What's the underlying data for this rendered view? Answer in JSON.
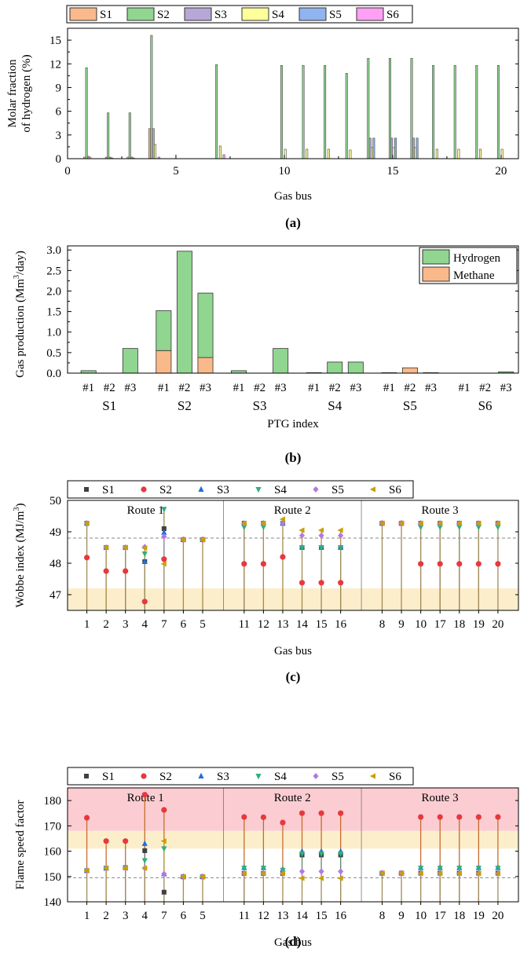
{
  "panels": [
    {
      "id": "a",
      "caption": "(a)"
    },
    {
      "id": "b",
      "caption": "(b)"
    },
    {
      "id": "c",
      "caption": "(c)"
    },
    {
      "id": "d",
      "caption": "(d)"
    }
  ],
  "colors": {
    "S1": "#f9b98a",
    "S2": "#90d590",
    "S3": "#b6a7d6",
    "S4": "#ffff99",
    "S5": "#8fb4f0",
    "S6": "#ffa0f5",
    "hydrogen": "#90d590",
    "methane": "#f9b98a",
    "markers": {
      "S1": "#404040",
      "S2": "#e8383d",
      "S3": "#1f6fd8",
      "S4": "#2fb07a",
      "S5": "#b577e0",
      "S6": "#c9a000"
    },
    "stem": "#b58a2a",
    "band_light": "#fdeecb",
    "band_red": "#fbcdd2"
  },
  "chart_data": [
    {
      "type": "bar",
      "panel": "a",
      "xlabel": "Gas bus",
      "ylabel": "Molar fraction of hydrogen (%)",
      "xlim": [
        0,
        20.8
      ],
      "ylim": [
        0,
        16.5
      ],
      "xticks": [
        0,
        5,
        10,
        15,
        20
      ],
      "yticks": [
        0,
        3,
        6,
        9,
        12,
        15
      ],
      "legend": [
        "S1",
        "S2",
        "S3",
        "S4",
        "S5",
        "S6"
      ],
      "legend_position": "top",
      "categories": [
        1,
        2,
        3,
        4,
        5,
        6,
        7,
        8,
        9,
        10,
        11,
        12,
        13,
        14,
        15,
        16,
        17,
        18,
        19,
        20
      ],
      "series": [
        {
          "name": "S1",
          "values": [
            0.2,
            0.2,
            0.2,
            3.8,
            0,
            0,
            0,
            0,
            0,
            0,
            0,
            0,
            0,
            0,
            0,
            0,
            0,
            0,
            0,
            0
          ]
        },
        {
          "name": "S2",
          "values": [
            11.5,
            5.8,
            5.8,
            15.6,
            0,
            0,
            11.9,
            0,
            0,
            11.8,
            11.8,
            11.8,
            10.8,
            12.7,
            12.7,
            12.7,
            11.8,
            11.8,
            11.8,
            11.8
          ]
        },
        {
          "name": "S3",
          "values": [
            0.3,
            0.2,
            0.2,
            3.8,
            0,
            0,
            0,
            0,
            0,
            0,
            0,
            0,
            0,
            2.6,
            2.6,
            2.6,
            0,
            0,
            0,
            0
          ]
        },
        {
          "name": "S4",
          "values": [
            0.2,
            0.1,
            0.1,
            1.8,
            0,
            0,
            1.6,
            0,
            0,
            1.2,
            1.2,
            1.2,
            1.1,
            1.4,
            1.4,
            1.4,
            1.2,
            1.2,
            1.2,
            1.2
          ]
        },
        {
          "name": "S5",
          "values": [
            0,
            0,
            0,
            0,
            0,
            0,
            0,
            0,
            0,
            0,
            0,
            0,
            0,
            2.6,
            2.6,
            2.6,
            0,
            0,
            0,
            0
          ]
        },
        {
          "name": "S6",
          "values": [
            0,
            0,
            0,
            0.2,
            0,
            0,
            0.5,
            0,
            0,
            0,
            0,
            0,
            0,
            0,
            0,
            0,
            0,
            0,
            0,
            0
          ]
        }
      ]
    },
    {
      "type": "bar",
      "panel": "b",
      "stacked": true,
      "xlabel": "PTG index",
      "ylabel": "Gas production (Mm³/day)",
      "ylim": [
        0,
        3.1
      ],
      "yticks": [
        0.0,
        0.5,
        1.0,
        1.5,
        2.0,
        2.5,
        3.0
      ],
      "legend": [
        "Hydrogen",
        "Methane"
      ],
      "legend_position": "top-right",
      "groups": [
        "S1",
        "S2",
        "S3",
        "S4",
        "S5",
        "S6"
      ],
      "sublabels": [
        "#1",
        "#2",
        "#3"
      ],
      "series": [
        {
          "name": "Hydrogen",
          "values": [
            0.06,
            0.0,
            0.6,
            0.97,
            2.97,
            1.57,
            0.06,
            0.0,
            0.6,
            0.01,
            0.27,
            0.27,
            0.0,
            0.0,
            0.01,
            0.0,
            0.0,
            0.03
          ]
        },
        {
          "name": "Methane",
          "values": [
            0,
            0,
            0,
            0.55,
            0,
            0.38,
            0,
            0,
            0,
            0,
            0,
            0,
            0.01,
            0.13,
            0,
            0,
            0,
            0
          ]
        }
      ]
    },
    {
      "type": "scatter",
      "panel": "c",
      "xlabel": "Gas bus",
      "ylabel": "Wobbe index (MJ/m³)",
      "ylim": [
        46.5,
        50.0
      ],
      "yticks": [
        47,
        48,
        49,
        50
      ],
      "legend": [
        "S1",
        "S2",
        "S3",
        "S4",
        "S5",
        "S6"
      ],
      "legend_position": "top",
      "route_labels": [
        "Route 1",
        "Route 2",
        "Route 3"
      ],
      "routes": [
        [
          "1",
          "2",
          "3",
          "4",
          "7",
          "6",
          "5"
        ],
        [
          "11",
          "12",
          "13",
          "14",
          "15",
          "16"
        ],
        [
          "8",
          "9",
          "10",
          "17",
          "18",
          "19",
          "20"
        ]
      ],
      "reference_line": 48.8,
      "band": [
        46.5,
        47.2
      ],
      "series": [
        {
          "name": "S1",
          "values": [
            49.27,
            48.5,
            48.5,
            48.05,
            49.1,
            48.75,
            48.75,
            49.27,
            49.27,
            49.27,
            48.5,
            48.5,
            48.5,
            49.27,
            49.27,
            49.27,
            49.27,
            49.27,
            49.27,
            49.27
          ]
        },
        {
          "name": "S2",
          "values": [
            48.18,
            47.75,
            47.75,
            46.78,
            48.13,
            48.75,
            48.75,
            47.98,
            47.98,
            48.2,
            47.38,
            47.38,
            47.38,
            49.27,
            49.27,
            47.98,
            47.98,
            47.98,
            47.98,
            47.98
          ]
        },
        {
          "name": "S3",
          "values": [
            49.27,
            48.5,
            48.5,
            48.05,
            48.98,
            48.75,
            48.75,
            49.27,
            49.27,
            49.27,
            48.5,
            48.5,
            48.5,
            49.27,
            49.27,
            49.27,
            49.27,
            49.27,
            49.27,
            49.27
          ]
        },
        {
          "name": "S4",
          "values": [
            49.25,
            48.5,
            48.5,
            48.3,
            49.72,
            48.75,
            48.75,
            49.15,
            49.15,
            49.27,
            48.5,
            48.5,
            48.5,
            49.27,
            49.27,
            49.15,
            49.15,
            49.15,
            49.15,
            49.15
          ]
        },
        {
          "name": "S5",
          "values": [
            49.27,
            48.5,
            48.5,
            48.52,
            48.85,
            48.75,
            48.75,
            49.27,
            49.27,
            49.27,
            48.88,
            48.88,
            48.88,
            49.27,
            49.27,
            49.27,
            49.27,
            49.27,
            49.27,
            49.27
          ]
        },
        {
          "name": "S6",
          "values": [
            49.27,
            48.5,
            48.5,
            48.48,
            47.98,
            48.75,
            48.75,
            49.27,
            49.27,
            49.4,
            49.05,
            49.05,
            49.05,
            49.27,
            49.27,
            49.27,
            49.27,
            49.27,
            49.27,
            49.27
          ]
        }
      ]
    },
    {
      "type": "scatter",
      "panel": "d",
      "xlabel": "Gas bus",
      "ylabel": "Flame speed factor",
      "ylim": [
        140,
        185
      ],
      "yticks": [
        140,
        150,
        160,
        170,
        180
      ],
      "legend": [
        "S1",
        "S2",
        "S3",
        "S4",
        "S5",
        "S6"
      ],
      "legend_position": "top",
      "route_labels": [
        "Route 1",
        "Route 2",
        "Route 3"
      ],
      "routes": [
        [
          "1",
          "2",
          "3",
          "4",
          "7",
          "6",
          "5"
        ],
        [
          "11",
          "12",
          "13",
          "14",
          "15",
          "16"
        ],
        [
          "8",
          "9",
          "10",
          "17",
          "18",
          "19",
          "20"
        ]
      ],
      "reference_line": 149.5,
      "band_light": [
        161,
        168
      ],
      "band_red": [
        168,
        185
      ],
      "series": [
        {
          "name": "S1",
          "values": [
            152.3,
            153.3,
            153.5,
            160.2,
            143.8,
            149.9,
            149.9,
            151.2,
            151.2,
            151.2,
            158.5,
            158.5,
            158.5,
            151.3,
            151.3,
            151.3,
            151.3,
            151.3,
            151.3,
            151.3
          ]
        },
        {
          "name": "S2",
          "values": [
            173.2,
            164.0,
            164.0,
            182.3,
            176.3,
            149.9,
            149.9,
            173.5,
            173.4,
            171.3,
            175.0,
            175.0,
            175.0,
            151.3,
            151.3,
            173.5,
            173.5,
            173.5,
            173.5,
            173.5
          ]
        },
        {
          "name": "S3",
          "values": [
            152.5,
            153.3,
            153.5,
            163.0,
            151.0,
            149.9,
            149.9,
            153.5,
            153.5,
            152.8,
            159.9,
            159.9,
            159.9,
            151.3,
            151.3,
            153.5,
            153.5,
            153.5,
            153.5,
            153.5
          ]
        },
        {
          "name": "S4",
          "values": [
            152.3,
            153.3,
            153.3,
            156.3,
            161.0,
            149.9,
            149.9,
            153.3,
            153.3,
            152.5,
            159.0,
            159.0,
            159.0,
            151.3,
            151.3,
            153.3,
            153.3,
            153.3,
            153.3,
            153.3
          ]
        },
        {
          "name": "S5",
          "values": [
            152.3,
            153.3,
            153.3,
            153.3,
            151.0,
            149.9,
            149.9,
            151.2,
            151.2,
            151.2,
            152.0,
            152.0,
            152.0,
            151.3,
            151.3,
            151.2,
            151.2,
            151.2,
            151.2,
            151.2
          ]
        },
        {
          "name": "S6",
          "values": [
            152.3,
            153.3,
            153.3,
            153.3,
            164.0,
            149.9,
            149.9,
            151.2,
            151.2,
            151.2,
            149.3,
            149.3,
            149.3,
            151.3,
            151.3,
            151.2,
            151.2,
            151.2,
            151.2,
            151.2
          ]
        }
      ]
    }
  ]
}
